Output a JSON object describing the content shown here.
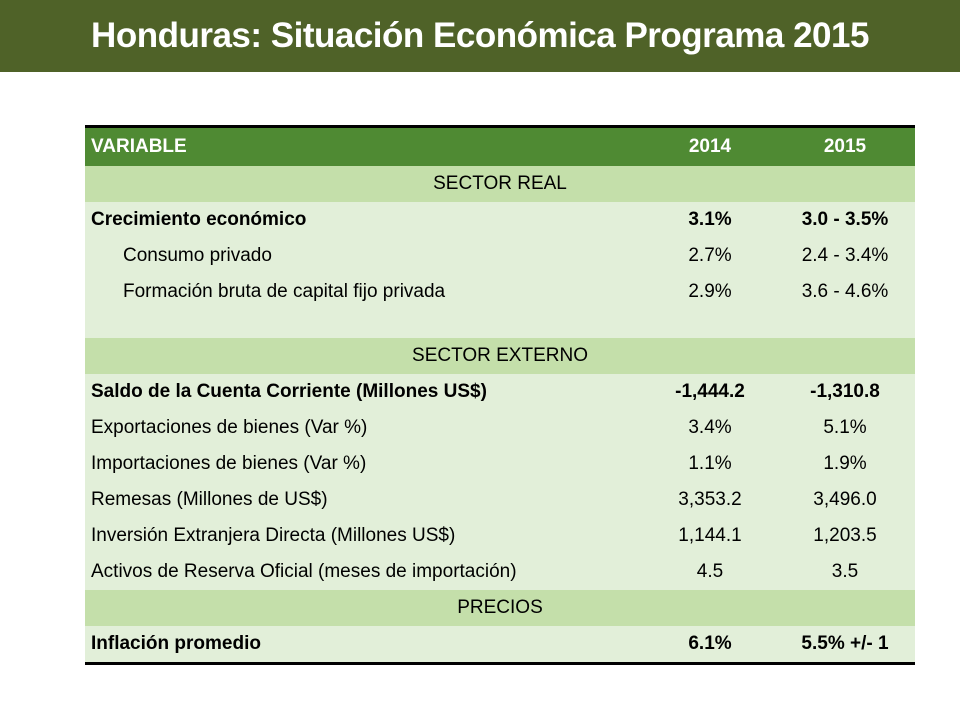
{
  "title": "Honduras: Situación Económica Programa 2015",
  "table": {
    "headers": {
      "variable": "VARIABLE",
      "y2014": "2014",
      "y2015": "2015"
    },
    "sector_real": {
      "label": "SECTOR REAL",
      "rows": [
        {
          "variable": "Crecimiento económico",
          "y2014": "3.1%",
          "y2015": "3.0 - 3.5%"
        },
        {
          "variable": "Consumo privado",
          "y2014": "2.7%",
          "y2015": "2.4 - 3.4%"
        },
        {
          "variable": "Formación bruta de capital fijo privada",
          "y2014": "2.9%",
          "y2015": "3.6 - 4.6%"
        }
      ]
    },
    "sector_externo": {
      "label": "SECTOR EXTERNO",
      "rows": [
        {
          "variable": "Saldo de la Cuenta Corriente (Millones US$)",
          "y2014": "-1,444.2",
          "y2015": "-1,310.8"
        },
        {
          "variable": "Exportaciones de bienes (Var %)",
          "y2014": "3.4%",
          "y2015": "5.1%"
        },
        {
          "variable": "Importaciones de bienes (Var %)",
          "y2014": "1.1%",
          "y2015": "1.9%"
        },
        {
          "variable": "Remesas (Millones de US$)",
          "y2014": "3,353.2",
          "y2015": "3,496.0"
        },
        {
          "variable": "Inversión Extranjera Directa (Millones US$)",
          "y2014": "1,144.1",
          "y2015": "1,203.5"
        },
        {
          "variable": "Activos de Reserva Oficial (meses de importación)",
          "y2014": "4.5",
          "y2015": "3.5"
        }
      ]
    },
    "precios": {
      "label": "PRECIOS",
      "rows": [
        {
          "variable": "Inflación promedio",
          "y2014": "6.1%",
          "y2015": "5.5% +/- 1"
        }
      ]
    }
  },
  "colors": {
    "title_bar": "#4f6228",
    "header_row": "#4f8a33",
    "section_row": "#c4dfaa",
    "body_row": "#e2efd9"
  }
}
